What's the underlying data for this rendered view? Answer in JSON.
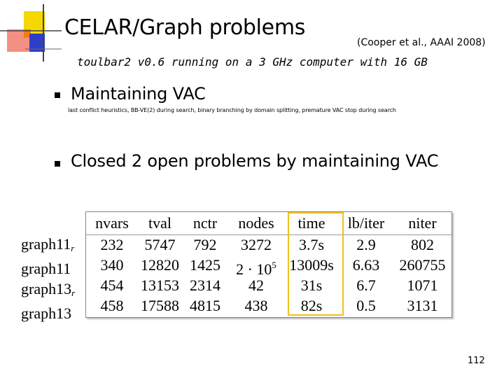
{
  "slide": {
    "title": "CELAR/Graph problems",
    "citation": "(Cooper et al., AAAI 2008)",
    "subtitle": "toulbar2 v0.6 running on a 3 GHz computer with 16 GB",
    "bullet1": "Maintaining VAC",
    "bullet1_detail": "last conflict heuristics, BB-VE(2) during search, binary branching by domain splitting, premature VAC stop during search",
    "bullet2": "Closed 2 open problems by maintaining VAC",
    "page_number": "112"
  },
  "table": {
    "headers": [
      "nvars",
      "tval",
      "nctr",
      "nodes",
      "time",
      "lb/iter",
      "niter"
    ],
    "rows": [
      {
        "label": "graph11",
        "label_sub": "r",
        "cells": [
          "232",
          "5747",
          "792",
          "3272",
          "3.7s",
          "2.9",
          "802"
        ]
      },
      {
        "label": "graph11",
        "label_sub": "",
        "cells": [
          "340",
          "12820",
          "1425",
          "2 · 10",
          "13009s",
          "6.63",
          "260755"
        ],
        "nodes_exp": "5"
      },
      {
        "label": "graph13",
        "label_sub": "r",
        "cells": [
          "454",
          "13153",
          "2314",
          "42",
          "31s",
          "6.7",
          "1071"
        ]
      },
      {
        "label": "graph13",
        "label_sub": "",
        "cells": [
          "458",
          "17588",
          "4815",
          "438",
          "82s",
          "0.5",
          "3131"
        ]
      }
    ],
    "highlight_column": "time",
    "highlight_color": "#f0c020"
  },
  "logo": {
    "colors": [
      "#f5d800",
      "#e8341c",
      "#2f3ec8"
    ]
  }
}
